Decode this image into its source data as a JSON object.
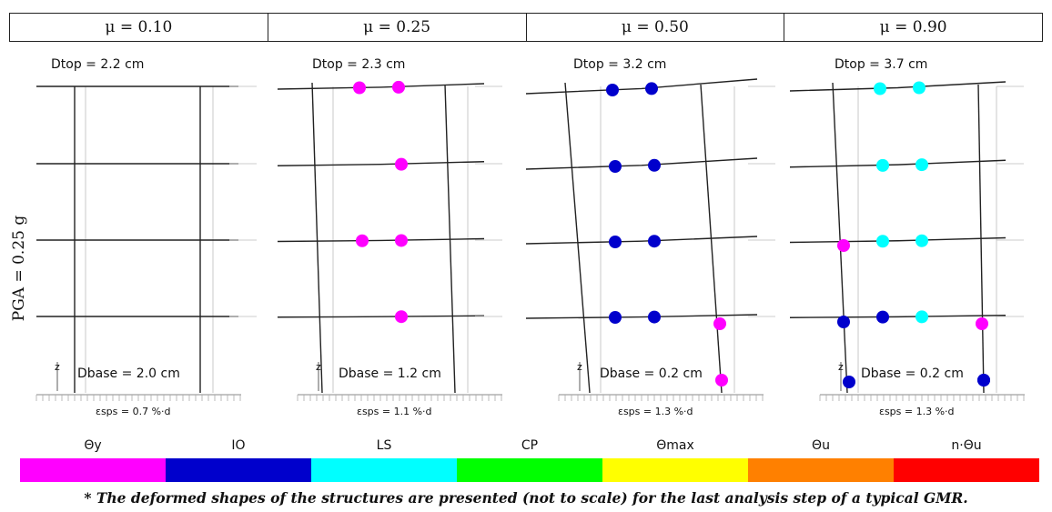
{
  "headers": [
    "μ = 0.10",
    "μ = 0.25",
    "μ = 0.50",
    "μ = 0.90"
  ],
  "row_label": "PGA = 0.25 g",
  "axis_glyph": "z",
  "panels": [
    {
      "d_top": "Dtop = 2.2 cm",
      "d_base": "Dbase = 2.0 cm",
      "eps": "εsps = 0.7 %·d",
      "hinges": []
    },
    {
      "d_top": "Dtop = 2.3 cm",
      "d_base": "Dbase = 1.2 cm",
      "eps": "εsps = 1.1 %·d",
      "hinges": [
        {
          "state": "Θy",
          "floor": 4,
          "pos": "beam-left"
        },
        {
          "state": "Θy",
          "floor": 4,
          "pos": "beam-right"
        },
        {
          "state": "Θy",
          "floor": 3,
          "pos": "beam-right"
        },
        {
          "state": "Θy",
          "floor": 2,
          "pos": "beam-left"
        },
        {
          "state": "Θy",
          "floor": 2,
          "pos": "beam-right"
        },
        {
          "state": "Θy",
          "floor": 1,
          "pos": "beam-right"
        }
      ]
    },
    {
      "d_top": "Dtop = 3.2 cm",
      "d_base": "Dbase = 0.2 cm",
      "eps": "εsps = 1.3 %·d",
      "hinges": [
        {
          "state": "IO",
          "floor": 4,
          "pos": "beam-left"
        },
        {
          "state": "IO",
          "floor": 4,
          "pos": "beam-right"
        },
        {
          "state": "IO",
          "floor": 3,
          "pos": "beam-left"
        },
        {
          "state": "IO",
          "floor": 3,
          "pos": "beam-right"
        },
        {
          "state": "IO",
          "floor": 2,
          "pos": "beam-left"
        },
        {
          "state": "IO",
          "floor": 2,
          "pos": "beam-right"
        },
        {
          "state": "IO",
          "floor": 1,
          "pos": "beam-left"
        },
        {
          "state": "IO",
          "floor": 1,
          "pos": "beam-right"
        },
        {
          "state": "Θy",
          "floor": 1,
          "pos": "column-right-top"
        },
        {
          "state": "Θy",
          "floor": 0,
          "pos": "column-right-base"
        }
      ]
    },
    {
      "d_top": "Dtop = 3.7 cm",
      "d_base": "Dbase = 0.2 cm",
      "eps": "εsps = 1.3 %·d",
      "hinges": [
        {
          "state": "LS",
          "floor": 4,
          "pos": "beam-left"
        },
        {
          "state": "LS",
          "floor": 4,
          "pos": "beam-right"
        },
        {
          "state": "LS",
          "floor": 3,
          "pos": "beam-left"
        },
        {
          "state": "LS",
          "floor": 3,
          "pos": "beam-right"
        },
        {
          "state": "LS",
          "floor": 2,
          "pos": "beam-left"
        },
        {
          "state": "LS",
          "floor": 2,
          "pos": "beam-right"
        },
        {
          "state": "Θy",
          "floor": 2,
          "pos": "column-left-top"
        },
        {
          "state": "IO",
          "floor": 1,
          "pos": "beam-left"
        },
        {
          "state": "LS",
          "floor": 1,
          "pos": "beam-right"
        },
        {
          "state": "Θy",
          "floor": 1,
          "pos": "column-right-top"
        },
        {
          "state": "IO",
          "floor": 1,
          "pos": "column-left-top"
        },
        {
          "state": "IO",
          "floor": 1,
          "pos": "column-right-base"
        },
        {
          "state": "IO",
          "floor": 0,
          "pos": "column-left-base"
        },
        {
          "state": "IO",
          "floor": 0,
          "pos": "column-right-base"
        }
      ]
    }
  ],
  "legend": [
    {
      "label": "Θy",
      "color": "#ff00ff"
    },
    {
      "label": "IO",
      "color": "#0000cc"
    },
    {
      "label": "LS",
      "color": "#00ffff"
    },
    {
      "label": "CP",
      "color": "#00ff00"
    },
    {
      "label": "Θmax",
      "color": "#ffff00"
    },
    {
      "label": "Θu",
      "color": "#ff8000"
    },
    {
      "label": "n·Θu",
      "color": "#ff0000"
    }
  ],
  "footnote": "* The deformed shapes of the structures are presented (not to scale) for the last analysis step of a typical GMR."
}
